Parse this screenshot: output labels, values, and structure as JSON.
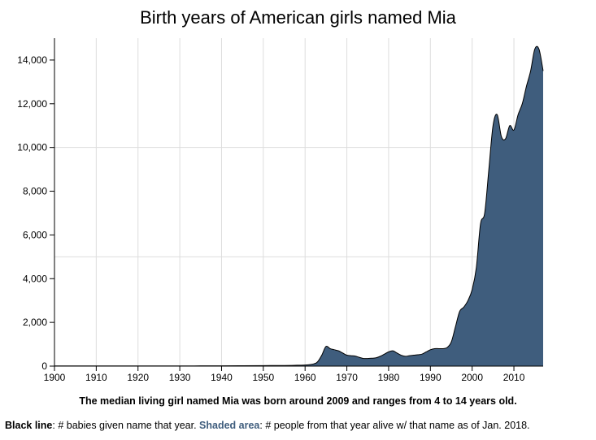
{
  "chart_data": {
    "type": "area",
    "title": "Birth years of American girls named Mia",
    "xlabel": "",
    "ylabel": "",
    "xlim": [
      1900,
      2017
    ],
    "ylim": [
      0,
      15000
    ],
    "x_ticks": [
      1900,
      1910,
      1920,
      1930,
      1940,
      1950,
      1960,
      1970,
      1980,
      1990,
      2000,
      2010
    ],
    "y_ticks": [
      0,
      2000,
      4000,
      6000,
      8000,
      10000,
      12000,
      14000
    ],
    "x_tick_labels": [
      "1900",
      "1910",
      "1920",
      "1930",
      "1940",
      "1950",
      "1960",
      "1970",
      "1980",
      "1990",
      "2000",
      "2010"
    ],
    "y_tick_labels": [
      "0",
      "2,000",
      "4,000",
      "6,000",
      "8,000",
      "10,000",
      "12,000",
      "14,000"
    ],
    "grid": true,
    "reference_line_y": 5000,
    "colors": {
      "area": "#3f5d7d",
      "line": "#000000",
      "grid": "#dddddd"
    },
    "series": [
      {
        "name": "# babies given name that year",
        "style": "line",
        "x": [
          1900,
          1910,
          1920,
          1930,
          1935,
          1940,
          1945,
          1950,
          1955,
          1958,
          1960,
          1962,
          1963,
          1964,
          1965,
          1966,
          1967,
          1968,
          1969,
          1970,
          1971,
          1972,
          1973,
          1974,
          1975,
          1976,
          1977,
          1978,
          1979,
          1980,
          1981,
          1982,
          1983,
          1984,
          1985,
          1986,
          1987,
          1988,
          1989,
          1990,
          1991,
          1992,
          1993,
          1994,
          1995,
          1996,
          1997,
          1998,
          1999,
          2000,
          2001,
          2002,
          2003,
          2004,
          2005,
          2006,
          2007,
          2008,
          2009,
          2010,
          2011,
          2012,
          2013,
          2014,
          2015,
          2016,
          2017
        ],
        "values": [
          10,
          10,
          10,
          10,
          12,
          15,
          20,
          25,
          30,
          40,
          50,
          100,
          200,
          500,
          900,
          800,
          750,
          700,
          600,
          500,
          480,
          460,
          400,
          350,
          350,
          360,
          380,
          450,
          550,
          650,
          700,
          600,
          500,
          450,
          480,
          500,
          520,
          550,
          650,
          750,
          800,
          800,
          800,
          850,
          1100,
          1800,
          2500,
          2700,
          3000,
          3500,
          4500,
          6500,
          7000,
          9000,
          11000,
          11500,
          10500,
          10400,
          11000,
          10800,
          11500,
          12000,
          12800,
          13500,
          14500,
          14500,
          13500
        ]
      },
      {
        "name": "# people from that year alive w/ that name as of Jan. 2018",
        "style": "area",
        "x": [
          1900,
          1910,
          1920,
          1930,
          1935,
          1940,
          1945,
          1950,
          1955,
          1958,
          1960,
          1962,
          1963,
          1964,
          1965,
          1966,
          1967,
          1968,
          1969,
          1970,
          1971,
          1972,
          1973,
          1974,
          1975,
          1976,
          1977,
          1978,
          1979,
          1980,
          1981,
          1982,
          1983,
          1984,
          1985,
          1986,
          1987,
          1988,
          1989,
          1990,
          1991,
          1992,
          1993,
          1994,
          1995,
          1996,
          1997,
          1998,
          1999,
          2000,
          2001,
          2002,
          2003,
          2004,
          2005,
          2006,
          2007,
          2008,
          2009,
          2010,
          2011,
          2012,
          2013,
          2014,
          2015,
          2016,
          2017
        ],
        "values": [
          0,
          0,
          0,
          2,
          5,
          8,
          12,
          18,
          25,
          35,
          45,
          95,
          195,
          490,
          880,
          790,
          740,
          690,
          595,
          495,
          475,
          455,
          395,
          345,
          345,
          355,
          375,
          445,
          545,
          645,
          695,
          595,
          495,
          445,
          475,
          495,
          515,
          545,
          645,
          745,
          795,
          795,
          795,
          845,
          1095,
          1795,
          2495,
          2695,
          2995,
          3495,
          4495,
          6495,
          6995,
          8995,
          10995,
          11495,
          10495,
          10395,
          10995,
          10795,
          11495,
          11995,
          12795,
          13495,
          14495,
          14495,
          13495
        ]
      }
    ],
    "caption": "The median living girl named Mia was born around 2009 and ranges from 4 to 14 years old.",
    "legend": {
      "line_label": "Black line",
      "line_text": ": # babies given name that year. ",
      "area_label": "Shaded area",
      "area_text": ": # people from that year alive w/ that name as of Jan. 2018."
    }
  }
}
